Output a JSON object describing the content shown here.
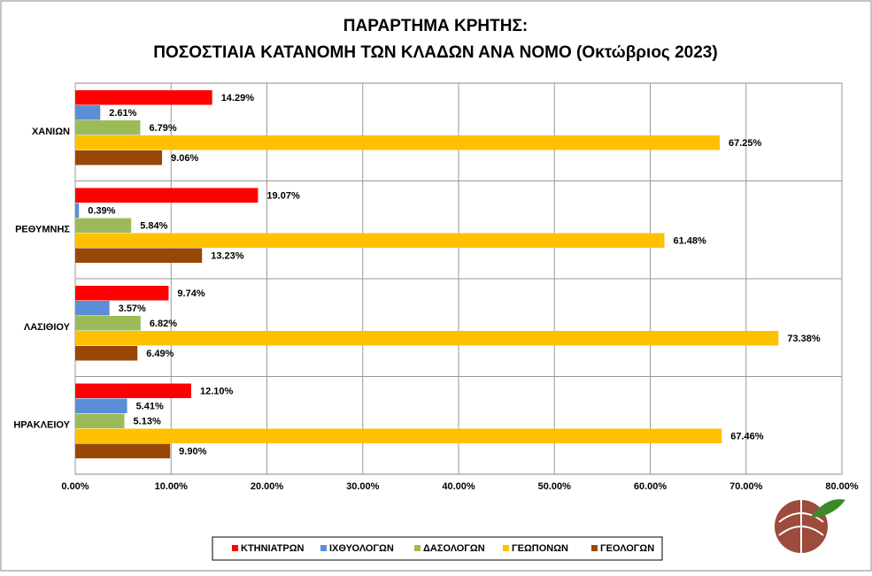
{
  "chart_data": {
    "type": "bar",
    "orientation": "horizontal",
    "title": "ΠΑΡΑΡΤΗΜΑ ΚΡΗΤΗΣ:",
    "subtitle": "ΠΟΣΟΣΤΙΑΙΑ ΚΑΤΑΝΟΜΗ ΤΩΝ ΚΛΑΔΩΝ ΑΝΑ ΝΟΜΟ (Οκτώβριος 2023)",
    "categories": [
      "ΧΑΝΙΩΝ",
      "ΡΕΘΥΜΝΗΣ",
      "ΛΑΣΙΘΙΟΥ",
      "ΗΡΑΚΛΕΙΟΥ"
    ],
    "series": [
      {
        "name": "ΚΤΗΝΙΑΤΡΩΝ",
        "color": "#ff0000",
        "values": [
          14.29,
          19.07,
          9.74,
          12.1
        ],
        "value_labels": [
          "14.29%",
          "19.07%",
          "9.74%",
          "12.10%"
        ]
      },
      {
        "name": "ΙΧΘΥΟΛΟΓΩΝ",
        "color": "#5b8ed6",
        "values": [
          2.61,
          0.39,
          3.57,
          5.41
        ],
        "value_labels": [
          "2.61%",
          "0.39%",
          "3.57%",
          "5.41%"
        ]
      },
      {
        "name": "ΔΑΣΟΛΟΓΩΝ",
        "color": "#9bbb59",
        "values": [
          6.79,
          5.84,
          6.82,
          5.13
        ],
        "value_labels": [
          "6.79%",
          "5.84%",
          "6.82%",
          "5.13%"
        ]
      },
      {
        "name": "ΓΕΩΠΟΝΩΝ",
        "color": "#ffc000",
        "values": [
          67.25,
          61.48,
          73.38,
          67.46
        ],
        "value_labels": [
          "67.25%",
          "61.48%",
          "73.38%",
          "67.46%"
        ]
      },
      {
        "name": "ΓΕΟΛΟΓΩΝ",
        "color": "#974706",
        "values": [
          9.06,
          13.23,
          6.49,
          9.9
        ],
        "value_labels": [
          "9.06%",
          "13.23%",
          "6.49%",
          "9.90%"
        ]
      }
    ],
    "xlim": [
      0,
      80
    ],
    "xticks": [
      {
        "value": 0,
        "label": "0.00%"
      },
      {
        "value": 10,
        "label": "10.00%"
      },
      {
        "value": 20,
        "label": "20.00%"
      },
      {
        "value": 30,
        "label": "30.00%"
      },
      {
        "value": 40,
        "label": "40.00%"
      },
      {
        "value": 50,
        "label": "50.00%"
      },
      {
        "value": 60,
        "label": "60.00%"
      },
      {
        "value": 70,
        "label": "70.00%"
      },
      {
        "value": 80,
        "label": "80.00%"
      }
    ],
    "grid": true,
    "legend": "bottom"
  }
}
